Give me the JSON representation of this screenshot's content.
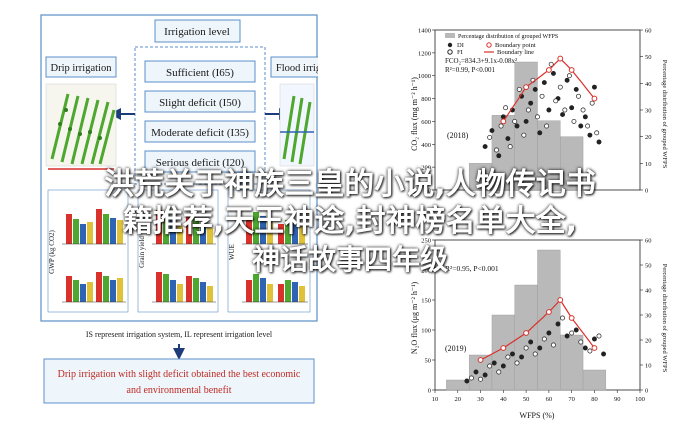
{
  "left_figure": {
    "irrigation_level_title": "Irrigation level",
    "levels": [
      "Sufficient (I65)",
      "Slight deficit (I50)",
      "Moderate deficit (I35)",
      "Serious deficit (I20)"
    ],
    "drip_label": "Drip irrigation",
    "flood_label": "Flood irrigation",
    "panel_titles": [
      "GWP (kg CO2)",
      "Grain yield",
      "WUE"
    ],
    "legend_note": "IS represent irrigation system, IL represent irrigation level",
    "conclusion_line1": "Drip irrigation with slight deficit obtained the best economic",
    "conclusion_line2": "and environmental benefit",
    "colors": {
      "border": "#5b8fc9",
      "box_bg": "#eef5fb",
      "red": "#d9312b",
      "green": "#4ea72e",
      "blue": "#2f63b3",
      "yellow": "#e0c238",
      "dark": "#1f3c7a"
    }
  },
  "right_figure": {
    "top": {
      "legend_bar": "Percentage distribution of grouped WFPS",
      "legend_di": "DI",
      "legend_fi": "FI",
      "legend_bp": "Boundary point",
      "legend_bl": "Boundary line",
      "eq": "FCO₂=834.3+9.1x-0.08x²",
      "r2": "R²=0.99, P<0.001",
      "year": "(2018)",
      "ylabel": "CO₂ flux (mg m⁻² h⁻¹)",
      "ylabel_right": "Percentage distribution of grouped WFPS",
      "yticks": [
        "0",
        "200",
        "400",
        "600",
        "800",
        "1000",
        "1200",
        "1400"
      ],
      "yticks_right": [
        "0",
        "10",
        "20",
        "30",
        "40",
        "50",
        "60"
      ]
    },
    "bottom": {
      "r2": "R²=0.95, P<0.001",
      "year": "(2019)",
      "ylabel": "N₂O flux (μg m⁻² h⁻¹)",
      "ylabel_right": "Percentage distribution of grouped WFPS",
      "yticks": [
        "0",
        "50",
        "100",
        "150",
        "200",
        "250"
      ],
      "yticks_right": [
        "0",
        "10",
        "20",
        "30",
        "40",
        "50",
        "60"
      ],
      "xlabel": "WFPS (%)",
      "xticks": [
        "10",
        "20",
        "30",
        "40",
        "50",
        "60",
        "70",
        "80",
        "90",
        "100"
      ]
    }
  },
  "overlay": {
    "line1": "洪荒关于神族三皇的小说,人物传记书",
    "line2": "籍推荐,天王神途,封神榜名单大全,",
    "line3": "神话故事四年级"
  },
  "chart_data": [
    {
      "type": "scatter",
      "title": "(2018)",
      "xlabel": "WFPS (%)",
      "ylabel": "CO₂ flux (mg m⁻² h⁻¹)",
      "xlim": [
        10,
        100
      ],
      "ylim": [
        0,
        1400
      ],
      "histogram": {
        "x": [
          30,
          40,
          50,
          60,
          70
        ],
        "percent": [
          10,
          28,
          48,
          26,
          20
        ]
      },
      "boundary_points": {
        "x": [
          40,
          50,
          60,
          65,
          70,
          80
        ],
        "y": [
          600,
          900,
          1050,
          1150,
          1050,
          800
        ]
      },
      "series": [
        {
          "name": "DI",
          "x": [
            32,
            35,
            38,
            40,
            42,
            44,
            46,
            48,
            50,
            52,
            54,
            56,
            58,
            60,
            62,
            64,
            66,
            68,
            70,
            72,
            74,
            76,
            78,
            80,
            82
          ],
          "y": [
            380,
            520,
            300,
            640,
            450,
            700,
            560,
            820,
            600,
            760,
            880,
            500,
            940,
            700,
            1020,
            800,
            660,
            960,
            720,
            880,
            560,
            640,
            480,
            900,
            420
          ]
        },
        {
          "name": "FI",
          "x": [
            34,
            37,
            39,
            41,
            43,
            45,
            47,
            49,
            51,
            53,
            55,
            57,
            59,
            61,
            63,
            65,
            67,
            69,
            71,
            73,
            75,
            77,
            79,
            81
          ],
          "y": [
            460,
            350,
            560,
            720,
            380,
            600,
            880,
            480,
            700,
            960,
            640,
            820,
            560,
            1100,
            780,
            900,
            700,
            1000,
            600,
            820,
            700,
            560,
            760,
            500
          ]
        }
      ]
    },
    {
      "type": "scatter",
      "title": "(2019)",
      "xlabel": "WFPS (%)",
      "ylabel": "N₂O flux (μg m⁻² h⁻¹)",
      "xlim": [
        10,
        100
      ],
      "ylim": [
        0,
        250
      ],
      "histogram": {
        "x": [
          20,
          30,
          40,
          50,
          60,
          70,
          80
        ],
        "percent": [
          4,
          14,
          30,
          42,
          56,
          22,
          8
        ]
      },
      "boundary_points": {
        "x": [
          30,
          40,
          50,
          60,
          65,
          70,
          80
        ],
        "y": [
          50,
          70,
          95,
          130,
          150,
          120,
          70
        ]
      },
      "series": [
        {
          "name": "DI",
          "x": [
            24,
            28,
            32,
            36,
            40,
            44,
            48,
            52,
            56,
            60,
            64,
            68,
            72,
            76,
            80,
            84
          ],
          "y": [
            15,
            30,
            25,
            45,
            40,
            60,
            55,
            80,
            70,
            95,
            110,
            90,
            100,
            70,
            85,
            60
          ]
        },
        {
          "name": "FI",
          "x": [
            26,
            30,
            34,
            38,
            42,
            46,
            50,
            54,
            58,
            62,
            66,
            70,
            74,
            78,
            82
          ],
          "y": [
            20,
            18,
            40,
            30,
            55,
            45,
            70,
            60,
            85,
            75,
            120,
            95,
            80,
            65,
            90
          ]
        }
      ]
    }
  ]
}
